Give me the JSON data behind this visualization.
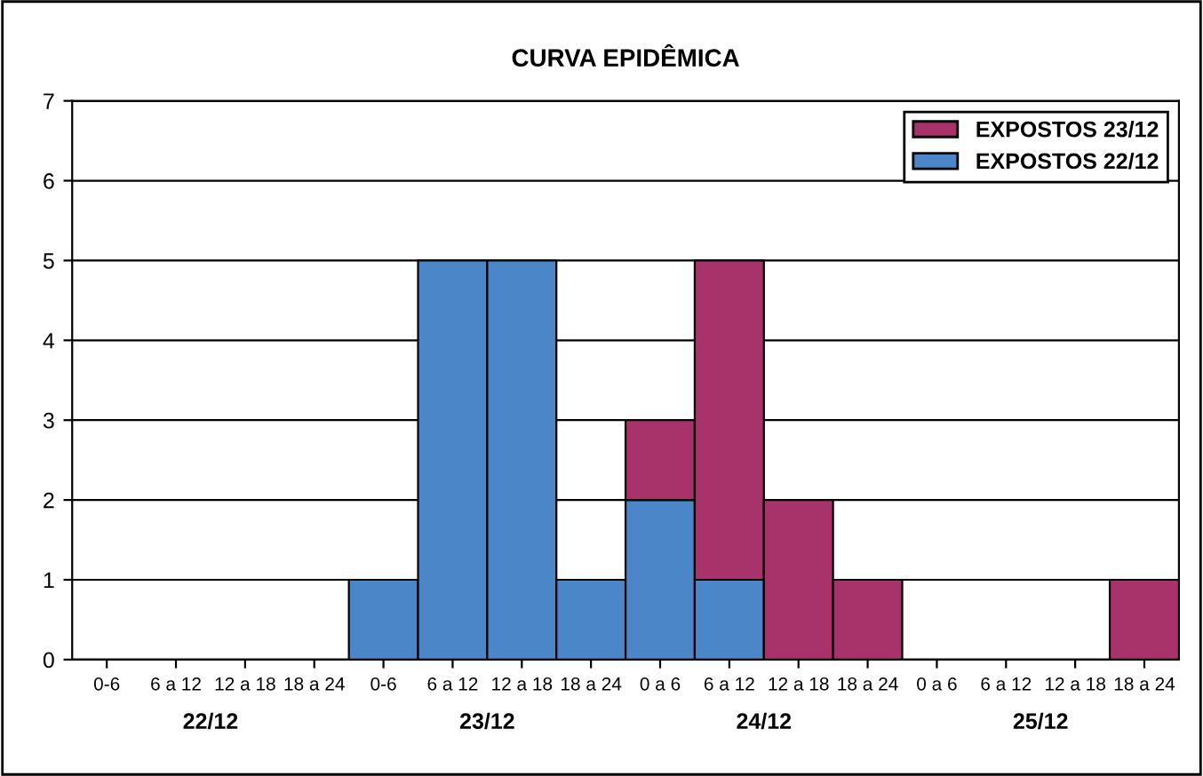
{
  "chart_data": {
    "type": "bar",
    "title": "CURVA EPIDÊMICA",
    "stacked": true,
    "categories": [
      "0-6",
      "6 a 12",
      "12 a 18",
      "18 a 24",
      "0-6",
      "6 a 12",
      "12 a 18",
      "18 a 24",
      "0 a 6",
      "6 a 12",
      "12 a 18",
      "18 a 24",
      "0 a 6",
      "6 a 12",
      "12 a 18",
      "18 a 24"
    ],
    "series": [
      {
        "name": "EXPOSTOS 22/12",
        "color": "#4a86c8",
        "values": [
          0,
          0,
          0,
          0,
          1,
          5,
          5,
          1,
          2,
          1,
          0,
          0,
          0,
          0,
          0,
          0
        ]
      },
      {
        "name": "EXPOSTOS 23/12",
        "color": "#a8326a",
        "values": [
          0,
          0,
          0,
          0,
          0,
          0,
          0,
          0,
          1,
          4,
          2,
          1,
          0,
          0,
          0,
          1
        ]
      }
    ],
    "annotations": [
      "22/12",
      "23/12",
      "24/12",
      "25/12"
    ],
    "ylim": [
      0,
      7
    ],
    "yticks": [
      0,
      1,
      2,
      3,
      4,
      5,
      6,
      7
    ],
    "grid": "y",
    "legend": "top right"
  }
}
